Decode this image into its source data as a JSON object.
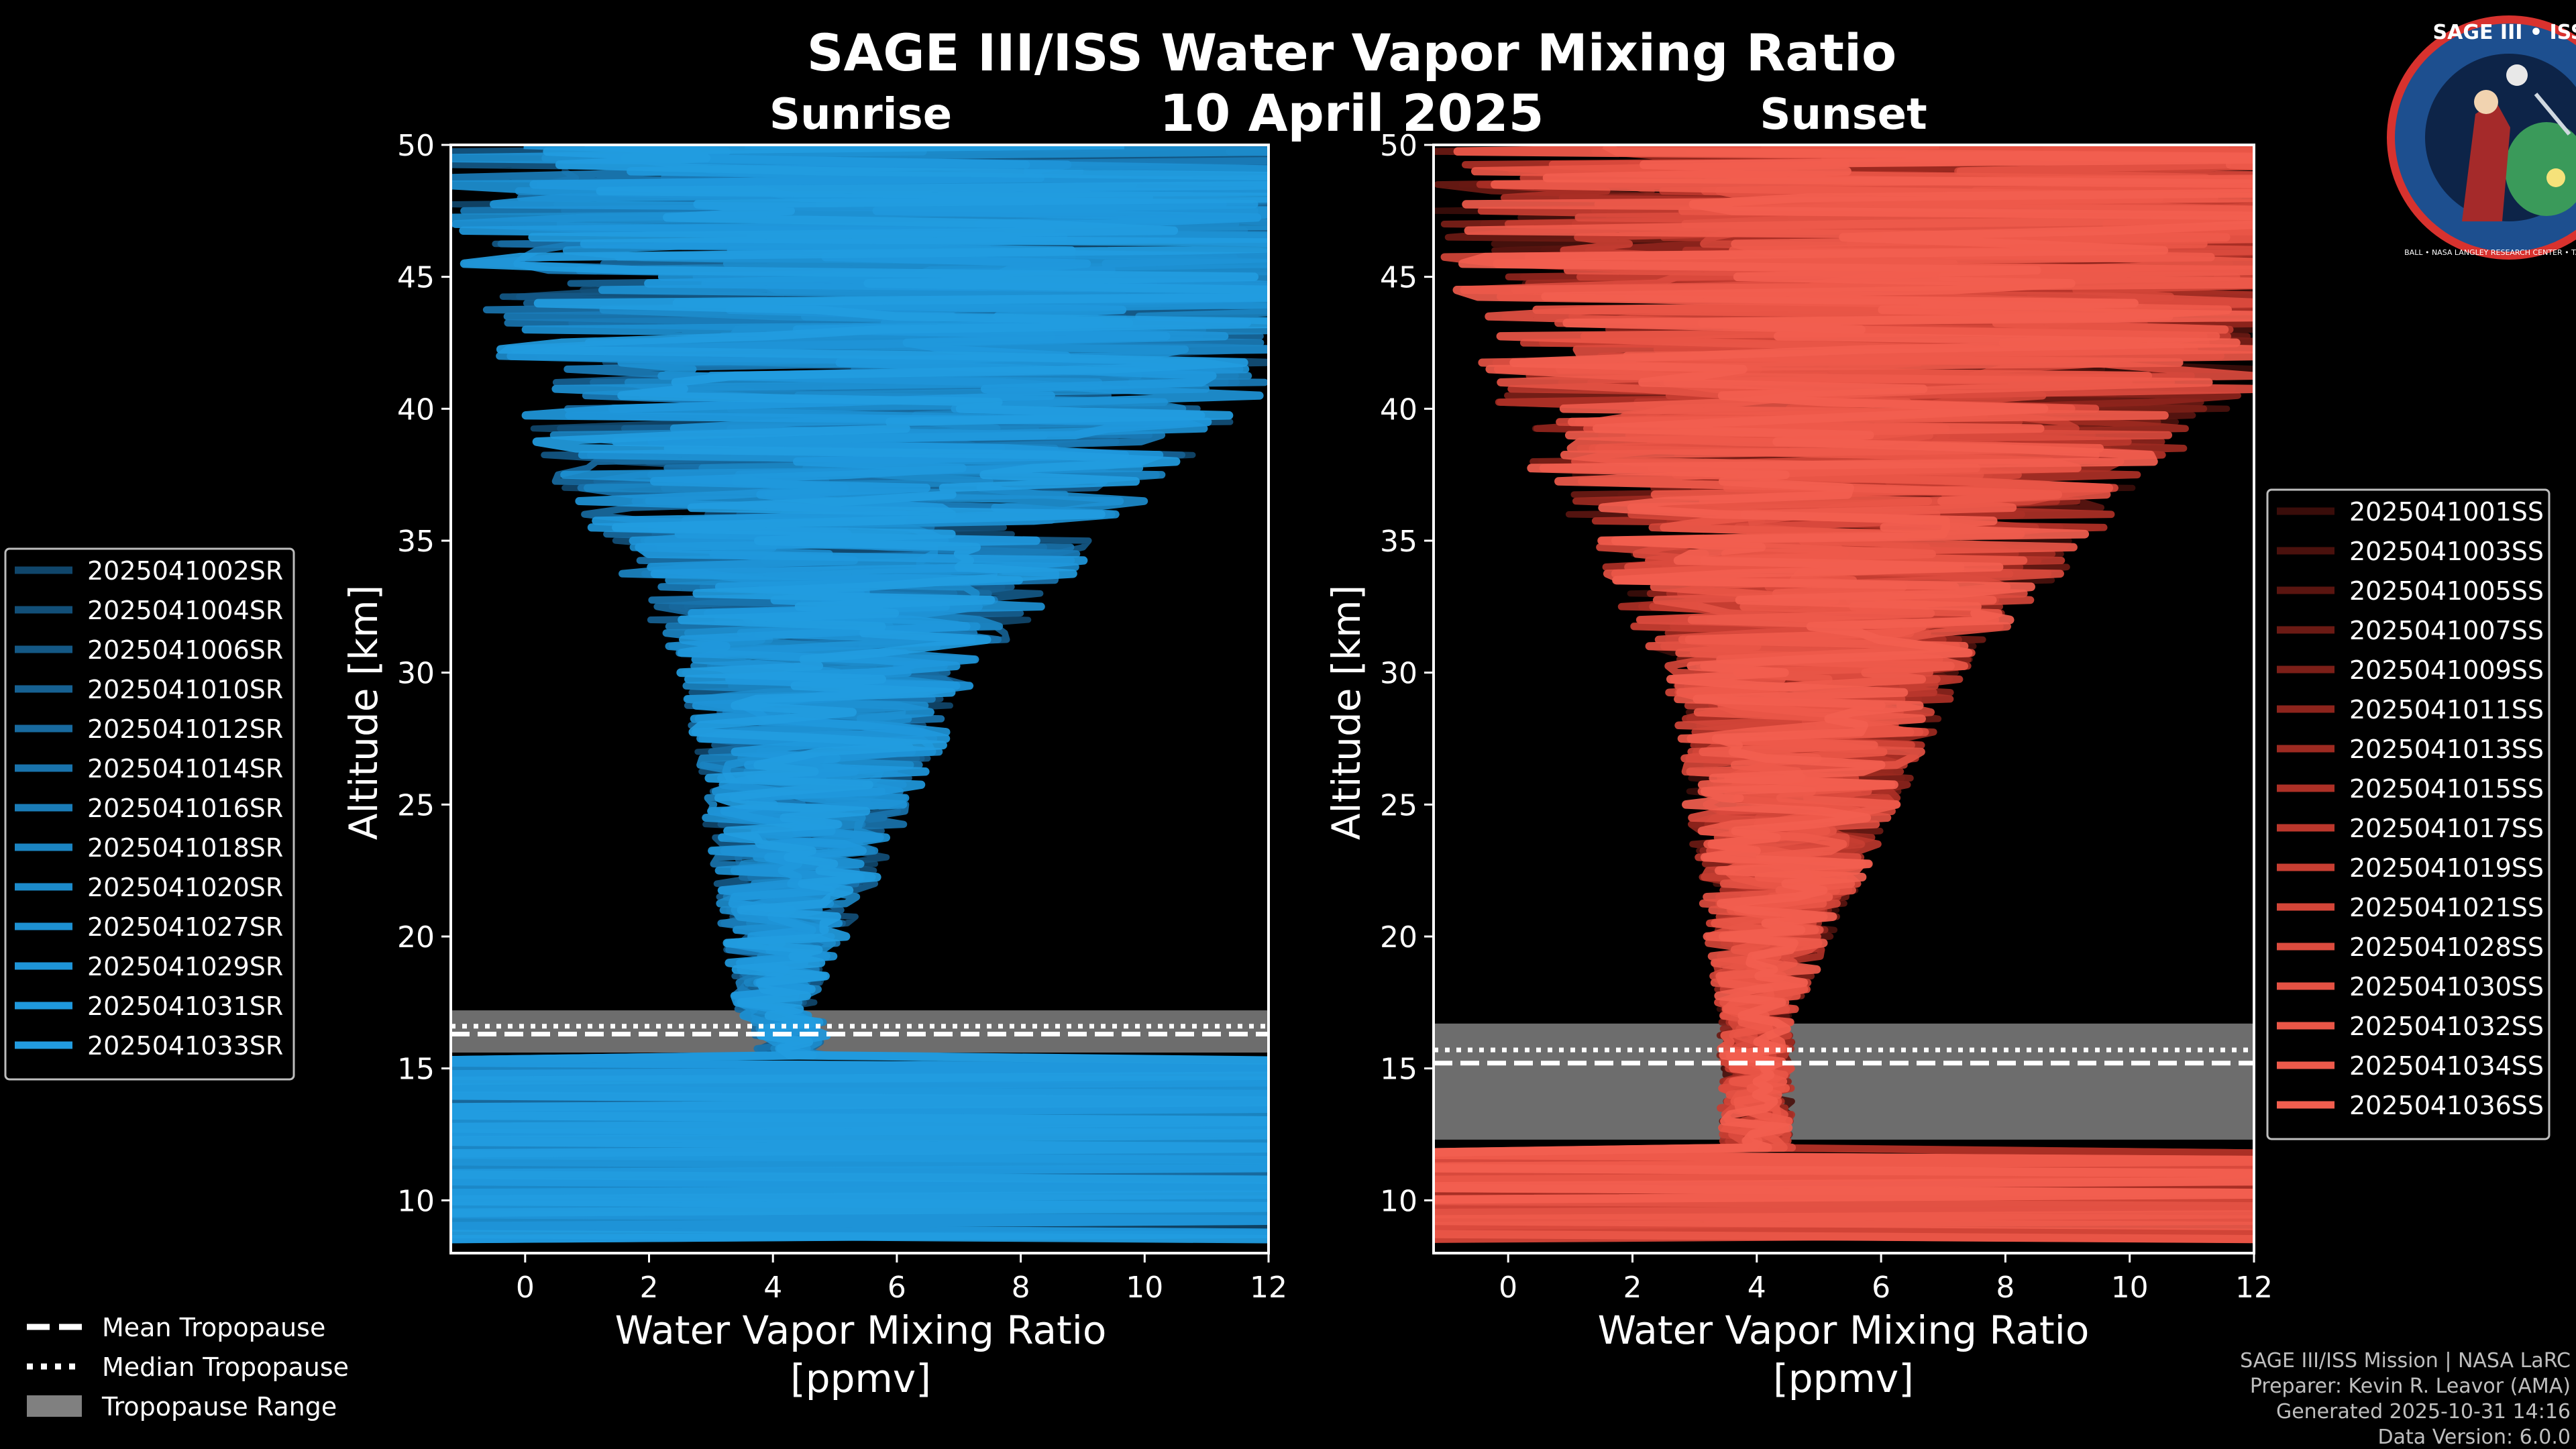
{
  "title": "SAGE III/ISS Water Vapor Mixing Ratio",
  "date": "10 April 2025",
  "colors": {
    "background": "#000000",
    "sunrise": "#1f93d6",
    "sunset": "#ef5a4c",
    "tropopause_range": "#808080"
  },
  "badge": {
    "title": "SAGE III • ISS",
    "caption": "BALL • NASA LANGLEY RESEARCH CENTER • TAS-I • ESA"
  },
  "chart_data": [
    {
      "type": "line",
      "panel": "Sunrise",
      "title": "Sunrise",
      "xlabel": "Water Vapor Mixing Ratio\n[ppmv]",
      "ylabel": "Altitude [km]",
      "xlim": [
        -1.2,
        12
      ],
      "ylim": [
        8,
        50
      ],
      "xticks": [
        0,
        2,
        4,
        6,
        8,
        10,
        12
      ],
      "yticks": [
        10,
        15,
        20,
        25,
        30,
        35,
        40,
        45,
        50
      ],
      "tropopause": {
        "mean": 16.3,
        "median": 16.6,
        "range": [
          15.6,
          17.2
        ]
      },
      "series": [
        {
          "name": "2025041002SR",
          "color": "#10466b"
        },
        {
          "name": "2025041004SR",
          "color": "#124f78"
        },
        {
          "name": "2025041006SR",
          "color": "#145885"
        },
        {
          "name": "2025041010SR",
          "color": "#166192"
        },
        {
          "name": "2025041012SR",
          "color": "#186a9f"
        },
        {
          "name": "2025041014SR",
          "color": "#1973ac"
        },
        {
          "name": "2025041016SR",
          "color": "#1a7cb8"
        },
        {
          "name": "2025041018SR",
          "color": "#1b84c2"
        },
        {
          "name": "2025041020SR",
          "color": "#1c8bcb"
        },
        {
          "name": "2025041027SR",
          "color": "#1d90d2"
        },
        {
          "name": "2025041029SR",
          "color": "#1e94d7"
        },
        {
          "name": "2025041031SR",
          "color": "#1f98dc"
        },
        {
          "name": "2025041033SR",
          "color": "#229ce0"
        }
      ]
    },
    {
      "type": "line",
      "panel": "Sunset",
      "title": "Sunset",
      "xlabel": "Water Vapor Mixing Ratio\n[ppmv]",
      "ylabel": "Altitude [km]",
      "xlim": [
        -1.2,
        12
      ],
      "ylim": [
        8,
        50
      ],
      "xticks": [
        0,
        2,
        4,
        6,
        8,
        10,
        12
      ],
      "yticks": [
        10,
        15,
        20,
        25,
        30,
        35,
        40,
        45,
        50
      ],
      "tropopause": {
        "mean": 15.2,
        "median": 15.7,
        "range": [
          12.3,
          16.7
        ]
      },
      "series": [
        {
          "name": "2025041001SS",
          "color": "#3a0d0a"
        },
        {
          "name": "2025041003SS",
          "color": "#4a110d"
        },
        {
          "name": "2025041005SS",
          "color": "#5a1510"
        },
        {
          "name": "2025041007SS",
          "color": "#6b1a14"
        },
        {
          "name": "2025041009SS",
          "color": "#7c1f18"
        },
        {
          "name": "2025041011SS",
          "color": "#8d241c"
        },
        {
          "name": "2025041013SS",
          "color": "#9d2a21"
        },
        {
          "name": "2025041015SS",
          "color": "#ad3026"
        },
        {
          "name": "2025041017SS",
          "color": "#bb372c"
        },
        {
          "name": "2025041019SS",
          "color": "#c73e32"
        },
        {
          "name": "2025041021SS",
          "color": "#d24538"
        },
        {
          "name": "2025041028SS",
          "color": "#db4b3e"
        },
        {
          "name": "2025041030SS",
          "color": "#e35143"
        },
        {
          "name": "2025041032SS",
          "color": "#e95647"
        },
        {
          "name": "2025041034SS",
          "color": "#ee5a4b"
        },
        {
          "name": "2025041036SS",
          "color": "#f25e4f"
        }
      ]
    }
  ],
  "legend_tropopause": {
    "mean": "Mean Tropopause",
    "median": "Median Tropopause",
    "range": "Tropopause Range"
  },
  "footer": {
    "line1": "SAGE III/ISS Mission | NASA LaRC",
    "line2": "Preparer: Kevin R. Leavor (AMA)",
    "line3": "Generated 2025-10-31 14:16",
    "line4": "Data Version: 6.0.0"
  }
}
